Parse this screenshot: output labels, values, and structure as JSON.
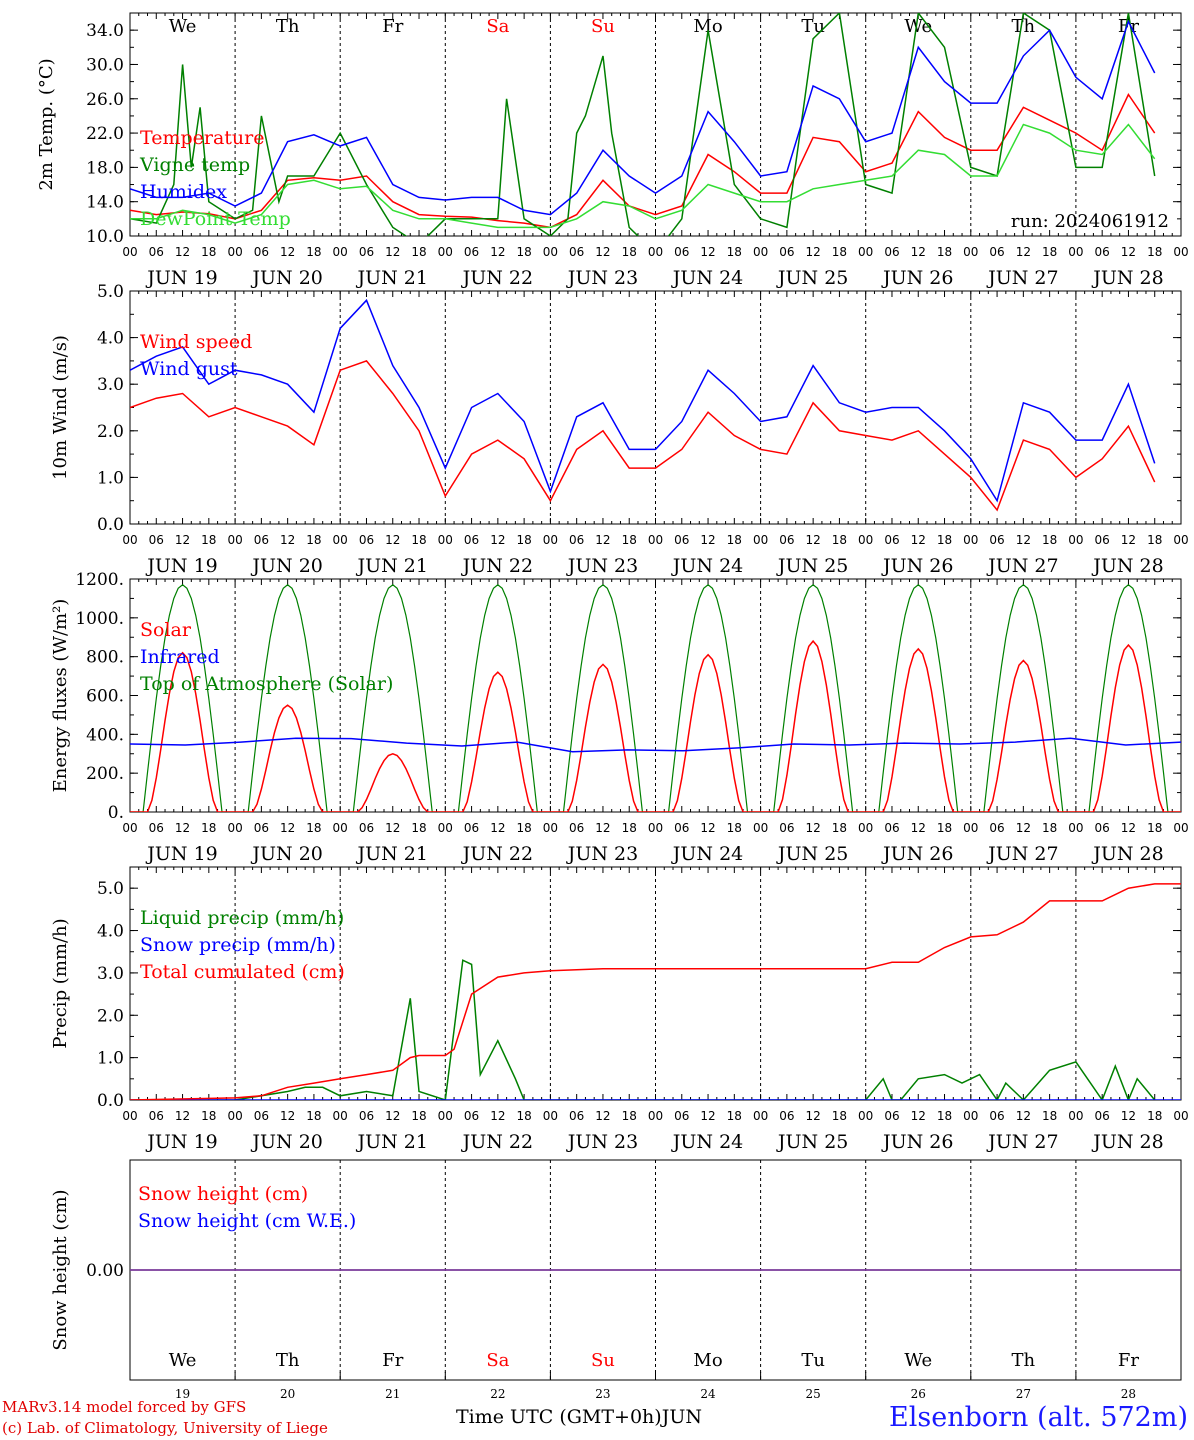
{
  "run_label": "run: 2024061912",
  "station": "Elsenborn (alt. 572m)",
  "credits": [
    "MARv3.14 model forced by GFS",
    "(c) Lab. of Climatology, University of Liege"
  ],
  "xlabel": "Time UTC (GMT+0h)",
  "month": "JUN",
  "colors": {
    "red": "#ff0000",
    "green": "#008000",
    "blue": "#0000ff",
    "lightgreen": "#33dd33",
    "snow_line": "#7a3a9a"
  },
  "days": [
    {
      "label": "We",
      "date": "JUN 19",
      "num": "19",
      "weekend": false
    },
    {
      "label": "Th",
      "date": "JUN 20",
      "num": "20",
      "weekend": false
    },
    {
      "label": "Fr",
      "date": "JUN 21",
      "num": "21",
      "weekend": false
    },
    {
      "label": "Sa",
      "date": "JUN 22",
      "num": "22",
      "weekend": true
    },
    {
      "label": "Su",
      "date": "JUN 23",
      "num": "23",
      "weekend": true
    },
    {
      "label": "Mo",
      "date": "JUN 24",
      "num": "24",
      "weekend": false
    },
    {
      "label": "Tu",
      "date": "JUN 25",
      "num": "25",
      "weekend": false
    },
    {
      "label": "We",
      "date": "JUN 26",
      "num": "26",
      "weekend": false
    },
    {
      "label": "Th",
      "date": "JUN 27",
      "num": "27",
      "weekend": false
    },
    {
      "label": "Fr",
      "date": "JUN 28",
      "num": "28",
      "weekend": false
    }
  ],
  "hour_ticks": [
    "00",
    "06",
    "12",
    "18"
  ],
  "end_tick": "00",
  "chart_data": [
    {
      "type": "line",
      "ylabel": "2m Temp. (°C)",
      "ylim": [
        10,
        36
      ],
      "yticks": [
        "10.0",
        "14.0",
        "18.0",
        "22.0",
        "26.0",
        "30.0",
        "34.0"
      ],
      "ytick_values": [
        10,
        14,
        18,
        22,
        26,
        30,
        34
      ],
      "series": [
        {
          "name": "Temperature",
          "color": "red",
          "x": [
            0,
            6,
            12,
            18,
            24,
            30,
            36,
            42,
            48,
            54,
            60,
            66,
            72,
            78,
            84,
            90,
            96,
            102,
            108,
            114,
            120,
            126,
            132,
            138,
            144,
            150,
            156,
            162,
            168,
            174,
            180,
            186,
            192,
            198,
            204,
            210,
            216,
            222,
            228,
            234
          ],
          "values": [
            13,
            12.5,
            12.8,
            12.6,
            12,
            13,
            16.5,
            16.8,
            16.5,
            17,
            14,
            12.5,
            12.3,
            12.2,
            11.8,
            11.5,
            11,
            12.5,
            16.5,
            13.5,
            12.5,
            13.5,
            19.5,
            17.5,
            15,
            15,
            21.5,
            21,
            17.5,
            18.5,
            24.5,
            21.5,
            20,
            20,
            25,
            23.5,
            22,
            20,
            26.5,
            22
          ]
        },
        {
          "name": "Vigne temp",
          "color": "green",
          "x": [
            0,
            6,
            10,
            12,
            14,
            16,
            18,
            24,
            28,
            30,
            34,
            36,
            42,
            48,
            54,
            60,
            66,
            72,
            78,
            84,
            86,
            90,
            96,
            100,
            102,
            104,
            108,
            110,
            114,
            120,
            126,
            132,
            138,
            144,
            150,
            156,
            162,
            168,
            174,
            180,
            186,
            192,
            198,
            204,
            210,
            216,
            222,
            228,
            234
          ],
          "values": [
            12,
            11.5,
            16,
            30,
            18,
            25,
            14,
            12,
            13,
            24,
            14,
            17,
            17,
            22,
            16,
            11,
            9,
            12,
            12,
            12,
            26,
            12,
            10,
            12,
            22,
            24,
            31,
            22,
            11,
            8,
            12,
            34,
            16,
            12,
            11,
            33,
            36,
            16,
            15,
            36,
            32,
            18,
            17,
            36,
            34,
            18,
            18,
            36,
            17
          ]
        },
        {
          "name": "Humidex",
          "color": "blue",
          "x": [
            0,
            6,
            12,
            18,
            24,
            30,
            36,
            42,
            48,
            54,
            60,
            66,
            72,
            78,
            84,
            90,
            96,
            102,
            108,
            114,
            120,
            126,
            132,
            138,
            144,
            150,
            156,
            162,
            168,
            174,
            180,
            186,
            192,
            198,
            204,
            210,
            216,
            222,
            228,
            234
          ],
          "values": [
            15.5,
            14.5,
            14.5,
            15,
            13.5,
            15,
            21,
            21.8,
            20.5,
            21.5,
            16,
            14.5,
            14.2,
            14.5,
            14.5,
            13,
            12.5,
            15,
            20,
            17,
            15,
            17,
            24.5,
            21,
            17,
            17.5,
            27.5,
            26,
            21,
            22,
            32,
            28,
            25.5,
            25.5,
            31,
            34,
            28.5,
            26,
            35,
            29
          ]
        },
        {
          "name": "DewPoint Temp",
          "color": "lightgreen",
          "x": [
            0,
            6,
            12,
            18,
            24,
            30,
            36,
            42,
            48,
            54,
            60,
            66,
            72,
            78,
            84,
            90,
            96,
            102,
            108,
            114,
            120,
            126,
            132,
            138,
            144,
            150,
            156,
            162,
            168,
            174,
            180,
            186,
            192,
            198,
            204,
            210,
            216,
            222,
            228,
            234
          ],
          "values": [
            12,
            12,
            13,
            12.5,
            11.5,
            12.5,
            16,
            16.5,
            15.5,
            15.8,
            13,
            12,
            12,
            11.5,
            11,
            11,
            11,
            12,
            14,
            13.5,
            12,
            13,
            16,
            15,
            14,
            14,
            15.5,
            16,
            16.5,
            17,
            20,
            19.5,
            17,
            17,
            23,
            22,
            20,
            19.5,
            23,
            19
          ]
        }
      ]
    },
    {
      "type": "line",
      "ylabel": "10m Wind (m/s)",
      "ylim": [
        0,
        5
      ],
      "yticks": [
        "0.0",
        "1.0",
        "2.0",
        "3.0",
        "4.0",
        "5.0"
      ],
      "ytick_values": [
        0,
        1,
        2,
        3,
        4,
        5
      ],
      "series": [
        {
          "name": "Wind speed",
          "color": "red",
          "x": [
            0,
            6,
            12,
            18,
            24,
            30,
            36,
            42,
            48,
            54,
            60,
            66,
            72,
            78,
            84,
            90,
            96,
            102,
            108,
            114,
            120,
            126,
            132,
            138,
            144,
            150,
            156,
            162,
            168,
            174,
            180,
            186,
            192,
            198,
            204,
            210,
            216,
            222,
            228,
            234
          ],
          "values": [
            2.5,
            2.7,
            2.8,
            2.3,
            2.5,
            2.3,
            2.1,
            1.7,
            3.3,
            3.5,
            2.8,
            2.0,
            0.6,
            1.5,
            1.8,
            1.4,
            0.5,
            1.6,
            2.0,
            1.2,
            1.2,
            1.6,
            2.4,
            1.9,
            1.6,
            1.5,
            2.6,
            2.0,
            1.9,
            1.8,
            2.0,
            1.5,
            1.0,
            0.3,
            1.8,
            1.6,
            1.0,
            1.4,
            2.1,
            0.9
          ]
        },
        {
          "name": "Wind gust",
          "color": "blue",
          "x": [
            0,
            6,
            12,
            18,
            24,
            30,
            36,
            42,
            48,
            54,
            60,
            66,
            72,
            78,
            84,
            90,
            96,
            102,
            108,
            114,
            120,
            126,
            132,
            138,
            144,
            150,
            156,
            162,
            168,
            174,
            180,
            186,
            192,
            198,
            204,
            210,
            216,
            222,
            228,
            234
          ],
          "values": [
            3.3,
            3.6,
            3.8,
            3.0,
            3.3,
            3.2,
            3.0,
            2.4,
            4.2,
            4.8,
            3.4,
            2.5,
            1.2,
            2.5,
            2.8,
            2.2,
            0.7,
            2.3,
            2.6,
            1.6,
            1.6,
            2.2,
            3.3,
            2.8,
            2.2,
            2.3,
            3.4,
            2.6,
            2.4,
            2.5,
            2.5,
            2.0,
            1.4,
            0.5,
            2.6,
            2.4,
            1.8,
            1.8,
            3.0,
            1.3
          ]
        }
      ]
    },
    {
      "type": "line",
      "ylabel": "Energy fluxes (W/m²)",
      "ylim": [
        0,
        1200
      ],
      "yticks": [
        "0.",
        "200.",
        "400.",
        "600.",
        "800.",
        "1000.",
        "1200."
      ],
      "ytick_values": [
        0,
        200,
        400,
        600,
        800,
        1000,
        1200
      ],
      "solar_peaks": [
        820,
        550,
        300,
        720,
        760,
        810,
        880,
        840,
        780,
        860
      ],
      "toa_peak": 1170,
      "infrared_values": [
        350,
        345,
        360,
        380,
        378,
        355,
        340,
        360,
        310,
        320,
        315,
        330,
        350,
        345,
        355,
        350,
        360,
        380,
        345,
        360
      ],
      "series": [
        {
          "name": "Solar",
          "color": "red"
        },
        {
          "name": "Infrared",
          "color": "blue"
        },
        {
          "name": "Top of Atmosphere (Solar)",
          "color": "green"
        }
      ]
    },
    {
      "type": "line",
      "ylabel": "Precip (mm/h)",
      "ylim": [
        0,
        5.5
      ],
      "yticks": [
        "0.0",
        "1.0",
        "2.0",
        "3.0",
        "4.0",
        "5.0"
      ],
      "ytick_values": [
        0,
        1,
        2,
        3,
        4,
        5
      ],
      "series": [
        {
          "name": "Liquid precip (mm/h)",
          "color": "green",
          "x": [
            0,
            24,
            36,
            40,
            44,
            48,
            54,
            60,
            64,
            66,
            72,
            76,
            78,
            80,
            84,
            88,
            90,
            96,
            120,
            144,
            168,
            172,
            174,
            176,
            180,
            186,
            190,
            194,
            198,
            200,
            204,
            210,
            216,
            222,
            225,
            228,
            230,
            234
          ],
          "values": [
            0,
            0,
            0.2,
            0.3,
            0.3,
            0.1,
            0.2,
            0.1,
            2.4,
            0.2,
            0,
            3.3,
            3.2,
            0.6,
            1.4,
            0.5,
            0,
            0,
            0,
            0,
            0,
            0.5,
            0,
            0,
            0.5,
            0.6,
            0.4,
            0.6,
            0,
            0.4,
            0,
            0.7,
            0.9,
            0,
            0.8,
            0,
            0.5,
            0
          ]
        },
        {
          "name": "Snow precip (mm/h)",
          "color": "blue",
          "x": [
            0,
            240
          ],
          "values": [
            0,
            0
          ]
        },
        {
          "name": "Total cumulated (cm)",
          "color": "red",
          "x": [
            0,
            24,
            30,
            36,
            42,
            48,
            54,
            60,
            64,
            66,
            72,
            74,
            78,
            84,
            90,
            96,
            108,
            120,
            144,
            168,
            174,
            180,
            186,
            192,
            198,
            204,
            210,
            216,
            222,
            228,
            234,
            240
          ],
          "values": [
            0,
            0.05,
            0.1,
            0.3,
            0.4,
            0.5,
            0.6,
            0.7,
            1.0,
            1.05,
            1.05,
            1.2,
            2.5,
            2.9,
            3.0,
            3.05,
            3.1,
            3.1,
            3.1,
            3.1,
            3.25,
            3.25,
            3.6,
            3.85,
            3.9,
            4.2,
            4.7,
            4.7,
            4.7,
            5.0,
            5.1,
            5.1
          ]
        }
      ]
    },
    {
      "type": "line",
      "ylabel": "Snow height (cm)",
      "ylim": [
        -1,
        1
      ],
      "yticks": [
        "0.00"
      ],
      "ytick_values": [
        0
      ],
      "series": [
        {
          "name": "Snow height (cm)",
          "color": "red",
          "x": [
            0,
            240
          ],
          "values": [
            0,
            0
          ]
        },
        {
          "name": "Snow height (cm W.E.)",
          "color": "blue",
          "x": [
            0,
            240
          ],
          "values": [
            0,
            0
          ]
        }
      ]
    }
  ]
}
